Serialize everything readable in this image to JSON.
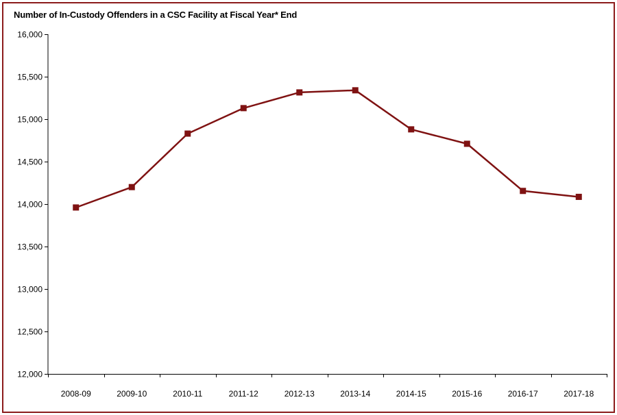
{
  "chart_data": {
    "type": "line",
    "title": "Number of In-Custody Offenders in a CSC Facility at Fiscal Year* End",
    "xlabel": "",
    "ylabel": "",
    "categories": [
      "2008-09",
      "2009-10",
      "2010-11",
      "2011-12",
      "2012-13",
      "2013-14",
      "2014-15",
      "2015-16",
      "2016-17",
      "2017-18"
    ],
    "series": [
      {
        "name": "In-custody offenders",
        "values": [
          13960,
          14200,
          14830,
          15130,
          15315,
          15340,
          14880,
          14710,
          14155,
          14085
        ]
      }
    ],
    "ylim": [
      12000,
      16000
    ],
    "ytick_step": 500,
    "ytick_labels": [
      "12,000",
      "12,500",
      "13,000",
      "13,500",
      "14,000",
      "14,500",
      "15,000",
      "15,500",
      "16,000"
    ],
    "grid": false,
    "legend": "none",
    "colors": {
      "line": "#7f1212",
      "marker": "#7f1212",
      "axis": "#000000",
      "border": "#8b1a1a"
    }
  }
}
